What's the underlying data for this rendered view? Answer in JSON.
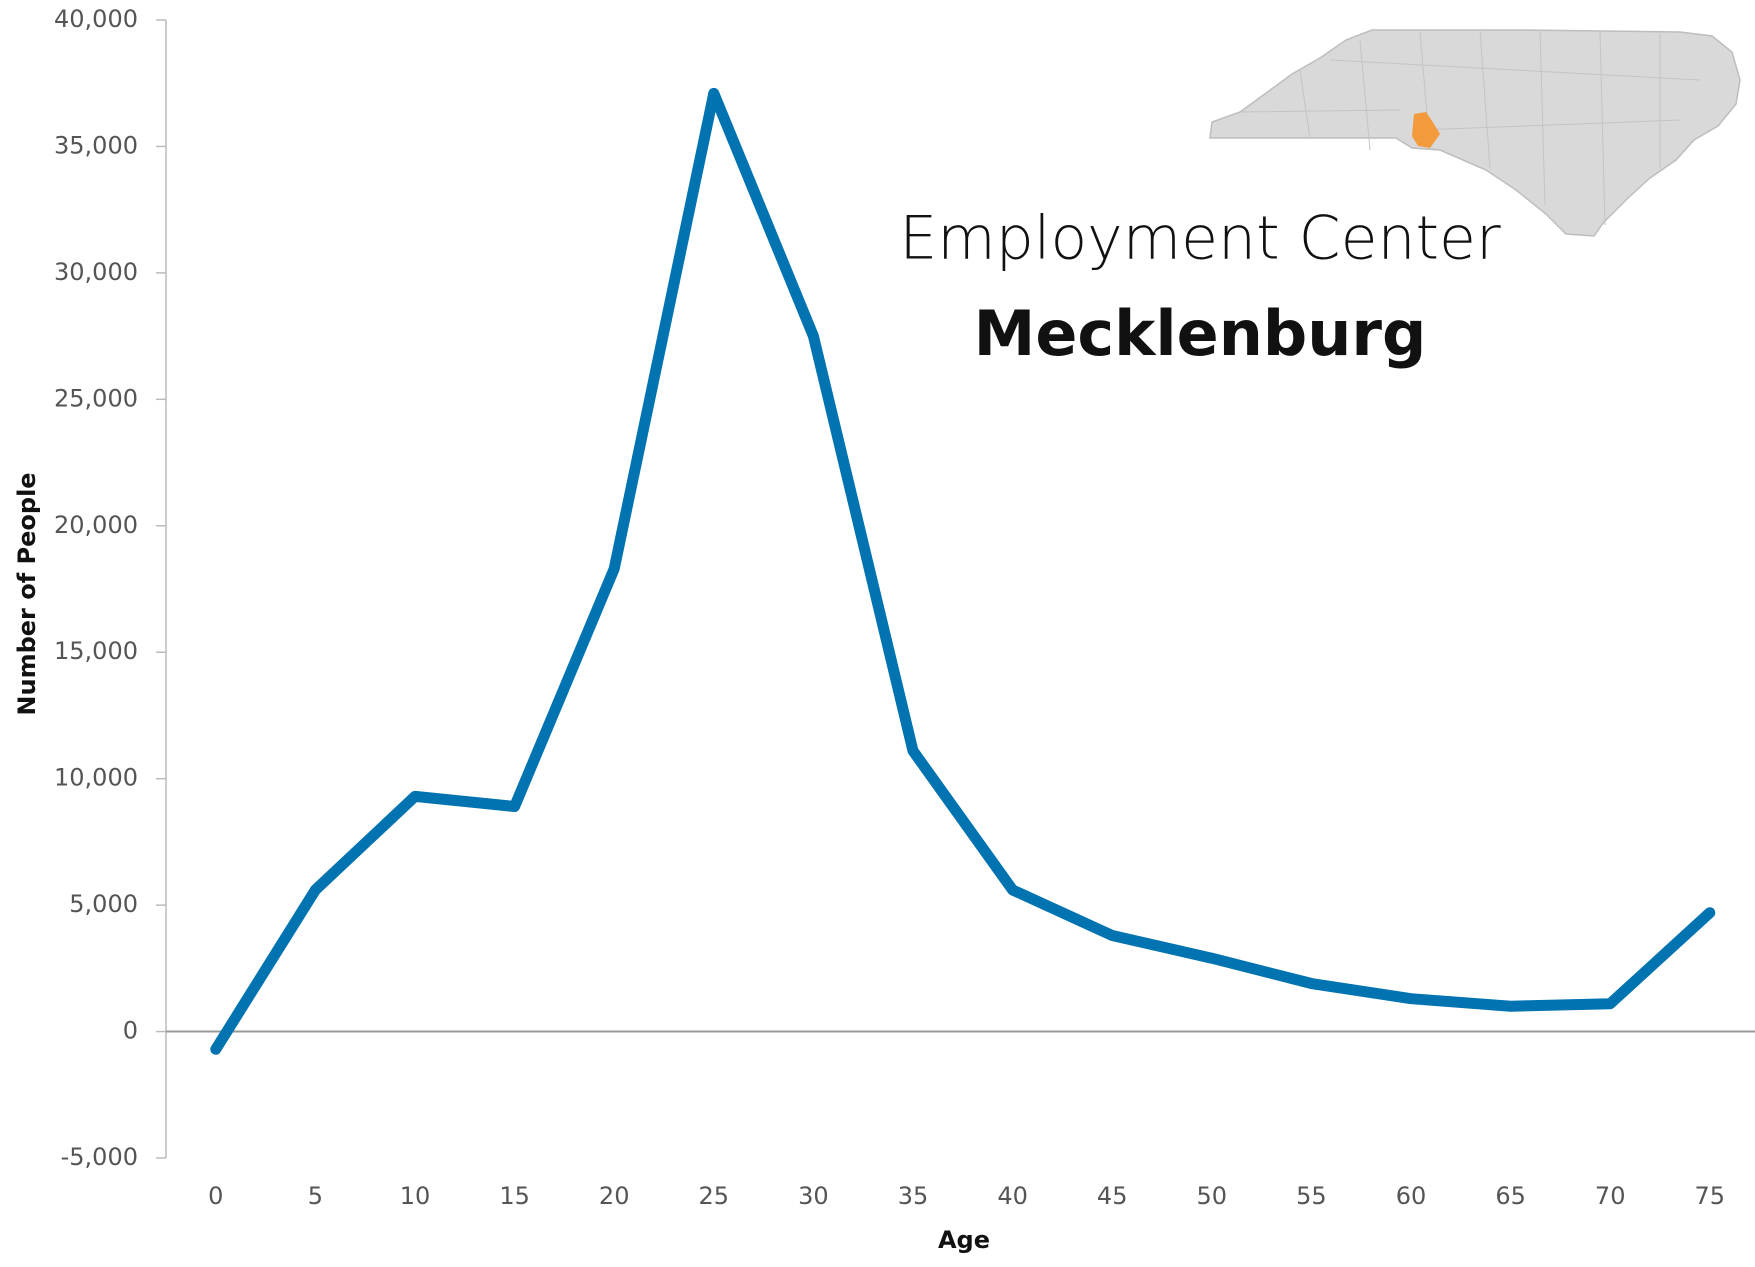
{
  "chart_data": {
    "type": "line",
    "title": "Employment Center",
    "subtitle": "Mecklenburg",
    "x_label": "Age",
    "y_label": "Number of People",
    "categories": [
      "0",
      "5",
      "10",
      "15",
      "20",
      "25",
      "30",
      "35",
      "40",
      "45",
      "50",
      "55",
      "60",
      "65",
      "70",
      "75"
    ],
    "series": [
      {
        "name": "Number of People",
        "color": "#0073b0",
        "values": [
          -700,
          5600,
          9300,
          8900,
          18300,
          37100,
          27500,
          11100,
          5600,
          3800,
          2900,
          1900,
          1300,
          1000,
          1100,
          4700
        ]
      }
    ],
    "ylim": [
      -5000,
      40000
    ],
    "yticks": [
      {
        "value": -5000,
        "label": "-5,000"
      },
      0,
      {
        "value": 5000,
        "label": "5,000"
      },
      {
        "value": 10000,
        "label": "10,000"
      },
      {
        "value": 15000,
        "label": "15,000"
      },
      {
        "value": 20000,
        "label": "20,000"
      },
      {
        "value": 25000,
        "label": "25,000"
      },
      {
        "value": 30000,
        "label": "30,000"
      },
      {
        "value": 35000,
        "label": "35,000"
      },
      {
        "value": 40000,
        "label": "40,000"
      }
    ],
    "grid": false
  }
}
